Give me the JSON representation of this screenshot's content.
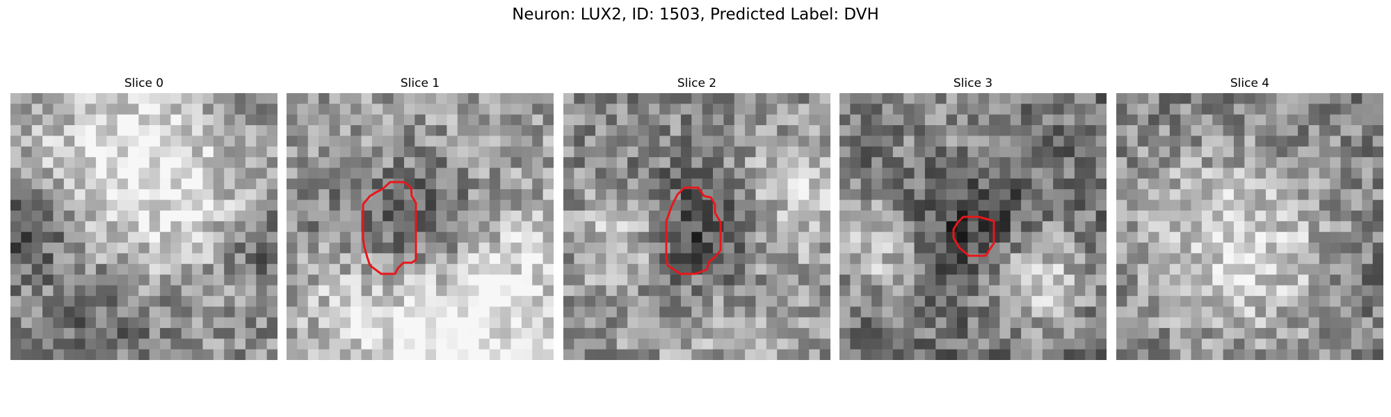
{
  "figure": {
    "title": "Neuron: LUX2, ID: 1503, Predicted Label: DVH"
  },
  "panels": [
    {
      "title": "Slice 0",
      "has_contour": false
    },
    {
      "title": "Slice 1",
      "has_contour": true
    },
    {
      "title": "Slice 2",
      "has_contour": true
    },
    {
      "title": "Slice 3",
      "has_contour": true
    },
    {
      "title": "Slice 4",
      "has_contour": false
    }
  ],
  "colors": {
    "contour": "#e8161a",
    "background": "#ffffff"
  },
  "image": {
    "colormap": "grayscale",
    "pixel_grid": "25x25"
  }
}
